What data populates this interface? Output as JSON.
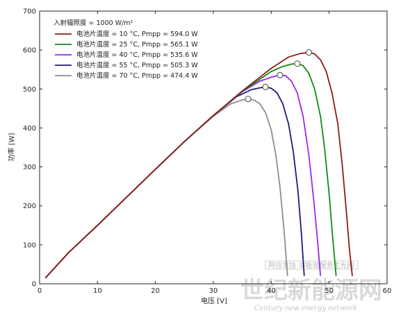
{
  "chart_data": {
    "type": "line",
    "title": "",
    "xlabel": "电压 [V]",
    "ylabel": "功率 [W]",
    "xlim": [
      0,
      60
    ],
    "ylim": [
      0,
      700
    ],
    "xticks": [
      0,
      10,
      20,
      30,
      40,
      50,
      60
    ],
    "yticks": [
      0,
      100,
      200,
      300,
      400,
      500,
      600,
      700
    ],
    "grid": false,
    "legend_position": "top-left",
    "legend_header": "入射辐照度 = 1000 W/m²",
    "series": [
      {
        "name": "电池片温度 = 10 °C,  Pmpp = 594.0 W",
        "color": "#8b1a1a",
        "x": [
          1.0,
          5,
          10,
          15,
          20,
          25,
          30,
          35,
          40,
          43,
          45,
          46.5,
          47.5,
          48.5,
          49.5,
          50.5,
          51.5,
          52.3,
          53.0,
          53.5,
          54.0
        ],
        "y": [
          15,
          80,
          150,
          222,
          294,
          365,
          432,
          495,
          553,
          582,
          591,
          594.0,
          590,
          575,
          545,
          490,
          410,
          300,
          180,
          90,
          20
        ]
      },
      {
        "name": "电池片温度 = 25 °C,  Pmpp = 565.1 W",
        "color": "#0f8a0f",
        "x": [
          1.0,
          5,
          10,
          15,
          20,
          25,
          30,
          35,
          40,
          42,
          43.5,
          44.5,
          45.5,
          46.5,
          47.5,
          48.5,
          49.2,
          50.0,
          50.6,
          51.2
        ],
        "y": [
          15,
          80,
          150,
          222,
          294,
          365,
          432,
          494,
          545,
          558,
          564,
          565.1,
          560,
          540,
          500,
          430,
          350,
          230,
          120,
          20
        ]
      },
      {
        "name": "电池片温度 = 40 °C,  Pmpp = 535.6 W",
        "color": "#9b27e8",
        "x": [
          1.0,
          5,
          10,
          15,
          20,
          25,
          30,
          35,
          38,
          40,
          41.5,
          42.5,
          43.5,
          44.5,
          45.5,
          46.5,
          47.3,
          48.0,
          48.5
        ],
        "y": [
          15,
          80,
          150,
          222,
          294,
          365,
          432,
          493,
          520,
          530,
          535.6,
          534,
          520,
          490,
          430,
          330,
          220,
          110,
          20
        ]
      },
      {
        "name": "电池片温度 = 55 °C,  Pmpp = 505.3 W",
        "color": "#1a1a7a",
        "x": [
          1.0,
          5,
          10,
          15,
          20,
          25,
          30,
          34,
          36.5,
          38,
          39,
          40,
          41,
          42,
          43,
          43.8,
          44.6,
          45.2,
          45.7
        ],
        "y": [
          15,
          80,
          150,
          222,
          294,
          365,
          432,
          480,
          498,
          503,
          505.3,
          502,
          490,
          462,
          410,
          340,
          240,
          130,
          20
        ]
      },
      {
        "name": "电池片温度 = 70 °C,  Pmpp = 474.4 W",
        "color": "#8c8c8c",
        "x": [
          1.0,
          5,
          10,
          15,
          20,
          25,
          30,
          33,
          35,
          36,
          37,
          38,
          39,
          40,
          40.8,
          41.5,
          42.2,
          42.8
        ],
        "y": [
          15,
          80,
          150,
          222,
          294,
          365,
          430,
          462,
          472,
          474.4,
          472,
          462,
          440,
          395,
          330,
          250,
          140,
          20
        ]
      }
    ],
    "mpp_points": [
      {
        "x": 46.5,
        "y": 594.0
      },
      {
        "x": 44.5,
        "y": 565.1
      },
      {
        "x": 41.5,
        "y": 535.6
      },
      {
        "x": 39.0,
        "y": 505.3
      },
      {
        "x": 36.0,
        "y": 474.4
      }
    ]
  },
  "watermark": {
    "box_text": "阿应发技 清能现报务生光网",
    "large_text": "世纪新能源网",
    "small_text": "Century new energy network"
  }
}
